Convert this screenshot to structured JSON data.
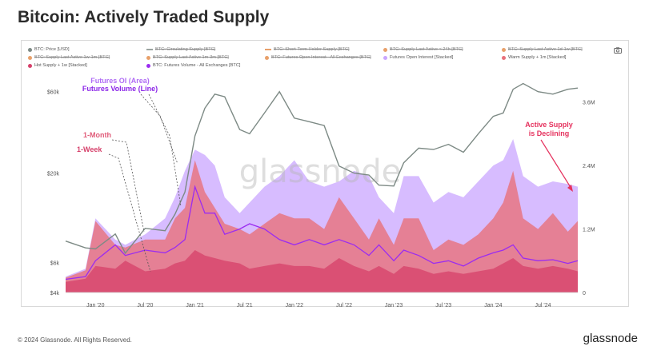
{
  "page": {
    "title": "Bitcoin: Actively Traded Supply",
    "footer": "© 2024 Glassnode. All Rights Reserved.",
    "brand": "glassnode",
    "watermark": "glassnode"
  },
  "legend": [
    {
      "label": "BTC: Price [USD]",
      "color": "#7d8a85",
      "kind": "dot",
      "active": true
    },
    {
      "label": "BTC: Circulating Supply [BTC]",
      "color": "#9aa3a0",
      "kind": "dash",
      "active": false
    },
    {
      "label": "BTC: Short-Term Holder Supply [BTC]",
      "color": "#e8a06a",
      "kind": "dash",
      "active": false
    },
    {
      "label": "BTC: Supply Last Active < 24h [BTC]",
      "color": "#e8a06a",
      "kind": "dot",
      "active": false
    },
    {
      "label": "BTC: Supply Last Active 1d-1w [BTC]",
      "color": "#e8a06a",
      "kind": "dot",
      "active": false
    },
    {
      "label": "BTC: Supply Last Active 1w-1m [BTC]",
      "color": "#e8a06a",
      "kind": "dot",
      "active": false
    },
    {
      "label": "BTC: Supply Last Active 1m-3m [BTC]",
      "color": "#e8a06a",
      "kind": "dot",
      "active": false
    },
    {
      "label": "BTC: Futures Open Interest - All Exchanges [BTC]",
      "color": "#e8a06a",
      "kind": "dot",
      "active": false
    },
    {
      "label": "Futures Open Interest [Stacked]",
      "color": "#c9a6ff",
      "kind": "dot",
      "active": true
    },
    {
      "label": "Warm Supply + 1m [Stacked]",
      "color": "#e8707a",
      "kind": "dot",
      "active": true
    },
    {
      "label": "Hot Supply + 1w [Stacked]",
      "color": "#d6406a",
      "kind": "dot",
      "active": true
    },
    {
      "label": "BTC: Futures Volume - All Exchanges [BTC]",
      "color": "#9b2cf0",
      "kind": "dot",
      "active": true
    }
  ],
  "annotations": {
    "futures_oi": "Futures OI (Area)",
    "futures_volume": "Futures Volume (Line)",
    "one_month": "1-Month",
    "one_week": "1-Week",
    "active_supply_1": "Active Supply",
    "active_supply_2": "is Declining"
  },
  "chart_data": {
    "type": "area",
    "title": "Bitcoin: Actively Traded Supply",
    "x_tick_labels": [
      "Jan '20",
      "Jul '20",
      "Jan '21",
      "Jul '21",
      "Jan '22",
      "Jul '22",
      "Jan '23",
      "Jul '23",
      "Jan '24",
      "Jul '24"
    ],
    "x": [
      2019.7,
      2019.9,
      2020.0,
      2020.2,
      2020.3,
      2020.5,
      2020.7,
      2020.8,
      2020.9,
      2021.0,
      2021.1,
      2021.2,
      2021.3,
      2021.45,
      2021.55,
      2021.7,
      2021.85,
      2022.0,
      2022.15,
      2022.3,
      2022.45,
      2022.6,
      2022.75,
      2022.85,
      2023.0,
      2023.1,
      2023.25,
      2023.4,
      2023.55,
      2023.7,
      2023.85,
      2024.0,
      2024.1,
      2024.2,
      2024.3,
      2024.45,
      2024.6,
      2024.75,
      2024.85
    ],
    "left_axis": {
      "scale": "log",
      "tick_labels": [
        "$60k",
        "$20k",
        "$6k",
        "$4k"
      ],
      "tick_values": [
        60000,
        20000,
        6000,
        4000
      ]
    },
    "right_axis": {
      "tick_labels": [
        "3.6M",
        "2.4M",
        "1.2M",
        "0"
      ],
      "tick_values": [
        3600000,
        2400000,
        1200000,
        0
      ],
      "range": [
        0,
        4200000
      ]
    },
    "series": [
      {
        "name": "BTC: Price [USD]",
        "axis": "left",
        "color": "#7d8a85",
        "values": [
          8000,
          7300,
          7200,
          8800,
          6800,
          9500,
          9200,
          11500,
          15500,
          33000,
          48000,
          58000,
          56000,
          36000,
          34000,
          45000,
          60000,
          42000,
          40000,
          38000,
          22000,
          20000,
          19500,
          17000,
          16800,
          23000,
          28000,
          27500,
          29500,
          26500,
          34000,
          43000,
          45000,
          62000,
          67000,
          60000,
          58000,
          62000,
          63000
        ]
      },
      {
        "name": "Futures Open Interest [Stacked]",
        "axis": "right",
        "color": "#c9a6ff",
        "values": [
          300000,
          450000,
          1400000,
          1000000,
          900000,
          1100000,
          1400000,
          1800000,
          2300000,
          2700000,
          2600000,
          2400000,
          1800000,
          1500000,
          1700000,
          2000000,
          2200000,
          2500000,
          2100000,
          2000000,
          2100000,
          2300000,
          2200000,
          1800000,
          1500000,
          2200000,
          2200000,
          1700000,
          1900000,
          1800000,
          2100000,
          2400000,
          2500000,
          2900000,
          2200000,
          2000000,
          2100000,
          2050000,
          2000000
        ]
      },
      {
        "name": "Warm Supply + 1m [Stacked]",
        "axis": "right",
        "color": "#e8707a",
        "values": [
          280000,
          420000,
          1350000,
          900000,
          850000,
          1000000,
          1000000,
          1400000,
          1600000,
          2500000,
          1900000,
          1600000,
          1300000,
          1200000,
          1100000,
          1300000,
          1500000,
          1400000,
          1400000,
          1200000,
          1800000,
          1400000,
          1000000,
          1400000,
          900000,
          1400000,
          1400000,
          800000,
          1000000,
          900000,
          1100000,
          1400000,
          1700000,
          2300000,
          1400000,
          1200000,
          1500000,
          1150000,
          1350000
        ]
      },
      {
        "name": "Hot Supply + 1w [Stacked]",
        "axis": "right",
        "color": "#d6406a",
        "values": [
          200000,
          260000,
          500000,
          450000,
          600000,
          400000,
          450000,
          550000,
          600000,
          800000,
          700000,
          650000,
          600000,
          550000,
          450000,
          500000,
          550000,
          500000,
          500000,
          450000,
          650000,
          500000,
          400000,
          500000,
          350000,
          500000,
          450000,
          350000,
          400000,
          350000,
          400000,
          450000,
          550000,
          650000,
          500000,
          450000,
          500000,
          450000,
          400000
        ]
      },
      {
        "name": "BTC: Futures Volume - All Exchanges [BTC]",
        "axis": "right",
        "color": "#9b2cf0",
        "values": [
          250000,
          300000,
          600000,
          900000,
          700000,
          800000,
          750000,
          850000,
          1000000,
          2000000,
          1500000,
          1500000,
          1100000,
          1200000,
          1300000,
          1200000,
          1000000,
          900000,
          1000000,
          900000,
          1000000,
          900000,
          700000,
          900000,
          600000,
          800000,
          700000,
          550000,
          600000,
          500000,
          650000,
          750000,
          800000,
          900000,
          650000,
          600000,
          620000,
          550000,
          600000
        ]
      }
    ]
  }
}
